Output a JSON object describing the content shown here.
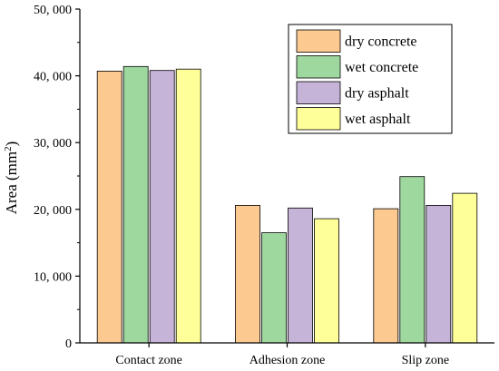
{
  "chart_data": {
    "type": "bar",
    "title": "",
    "xlabel": "",
    "ylabel": "Area (mm",
    "ylabel_sup": "2",
    "ylabel_close": ")",
    "categories": [
      "Contact zone",
      "Adhesion zone",
      "Slip zone"
    ],
    "ylim": [
      0,
      50000
    ],
    "yticks": [
      0,
      10000,
      20000,
      30000,
      40000,
      50000
    ],
    "ytick_labels": [
      "0",
      "10, 000",
      "20, 000",
      "30, 000",
      "40, 000",
      "50, 000"
    ],
    "legend_position": "top-right",
    "grid": false,
    "series": [
      {
        "name": "dry concrete",
        "color": "#fcc990",
        "values": [
          40700,
          20600,
          20100
        ]
      },
      {
        "name": "wet concrete",
        "color": "#9fd89f",
        "values": [
          41400,
          16500,
          24900
        ]
      },
      {
        "name": "dry asphalt",
        "color": "#c5b3d8",
        "values": [
          40800,
          20200,
          20600
        ]
      },
      {
        "name": "wet asphalt",
        "color": "#ffff99",
        "values": [
          41000,
          18600,
          22400
        ]
      }
    ]
  }
}
